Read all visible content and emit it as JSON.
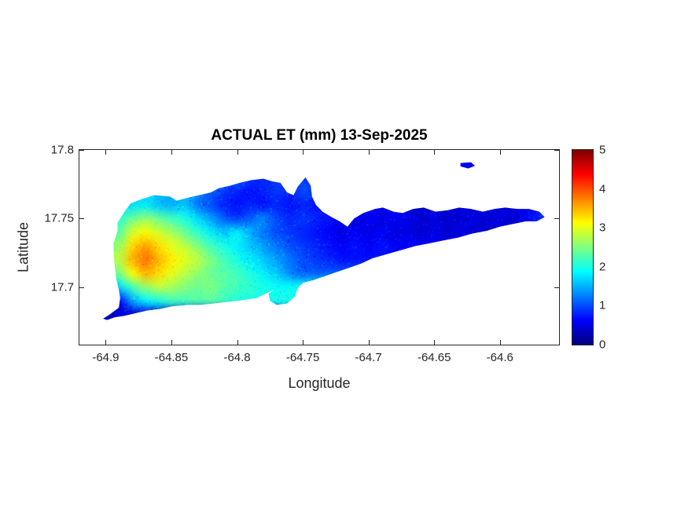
{
  "figure": {
    "background": "#ffffff",
    "frame_color": "#262626"
  },
  "chart_data": {
    "type": "heatmap",
    "title": "ACTUAL ET (mm) 13-Sep-2025",
    "xlabel": "Longitude",
    "ylabel": "Latitude",
    "xlim": [
      -64.92,
      -64.555
    ],
    "ylim": [
      17.658,
      17.8
    ],
    "xticks": [
      -64.9,
      -64.85,
      -64.8,
      -64.75,
      -64.7,
      -64.65,
      -64.6
    ],
    "xtick_labels": [
      "-64.9",
      "-64.85",
      "-64.8",
      "-64.75",
      "-64.7",
      "-64.65",
      "-64.6"
    ],
    "yticks": [
      17.7,
      17.75,
      17.8
    ],
    "ytick_labels": [
      "17.7",
      "17.75",
      "17.8"
    ],
    "grid_on": false,
    "colormap": "jet",
    "colorbar": {
      "min": 0,
      "max": 5,
      "ticks": [
        0,
        1,
        2,
        3,
        4,
        5
      ],
      "position": "right"
    },
    "grid": {
      "lon_start": -64.9,
      "lon_step": 0.01,
      "lat_start": 17.79,
      "lat_step": -0.01,
      "values": [
        [
          null,
          null,
          null,
          null,
          null,
          null,
          null,
          null,
          null,
          null,
          null,
          null,
          null,
          null,
          null,
          null,
          null,
          null,
          null,
          null,
          null,
          null,
          null,
          null,
          null,
          null,
          null,
          null,
          0.5,
          null,
          null,
          null,
          null,
          null,
          null
        ],
        [
          null,
          null,
          null,
          null,
          null,
          null,
          null,
          null,
          null,
          null,
          1.1,
          0.9,
          0.8,
          0.9,
          1.0,
          0.9,
          null,
          null,
          null,
          null,
          null,
          null,
          null,
          null,
          null,
          null,
          null,
          null,
          null,
          null,
          null,
          null,
          null,
          null,
          null
        ],
        [
          null,
          null,
          null,
          1.6,
          1.5,
          1.4,
          1.5,
          1.3,
          1.1,
          0.9,
          0.8,
          0.7,
          0.8,
          0.9,
          0.8,
          1.0,
          0.9,
          null,
          null,
          null,
          null,
          null,
          null,
          null,
          null,
          null,
          null,
          null,
          null,
          null,
          null,
          null,
          null,
          null,
          null
        ],
        [
          null,
          1.8,
          1.7,
          1.8,
          1.6,
          1.5,
          1.6,
          1.2,
          1.0,
          0.8,
          0.7,
          0.8,
          0.7,
          0.8,
          0.7,
          0.8,
          0.7,
          0.8,
          null,
          null,
          0.6,
          0.5,
          0.6,
          0.5,
          0.4,
          0.5,
          0.4,
          0.5,
          0.4,
          0.5,
          0.4,
          0.5,
          0.5,
          0.7,
          0.9
        ],
        [
          null,
          2.1,
          2.4,
          2.6,
          2.4,
          2.2,
          2.0,
          1.7,
          1.4,
          1.1,
          0.9,
          1.1,
          1.3,
          1.0,
          0.8,
          0.9,
          0.8,
          0.7,
          0.6,
          0.5,
          0.6,
          0.5,
          0.6,
          0.5,
          0.4,
          0.5,
          0.4,
          0.4,
          0.5,
          0.4,
          0.5,
          0.4,
          0.6,
          0.8,
          1.0
        ],
        [
          null,
          2.3,
          2.9,
          3.1,
          2.9,
          2.7,
          2.4,
          2.1,
          1.8,
          1.6,
          1.8,
          1.5,
          1.2,
          1.0,
          0.9,
          0.8,
          0.7,
          0.6,
          0.5,
          0.6,
          0.5,
          0.6,
          0.5,
          0.5,
          0.4,
          0.5,
          0.4,
          0.5,
          0.4,
          0.4,
          null,
          null,
          null,
          null,
          null
        ],
        [
          null,
          2.6,
          3.3,
          3.6,
          3.3,
          3.0,
          2.8,
          2.5,
          2.2,
          2.0,
          1.8,
          1.6,
          1.4,
          1.2,
          1.0,
          0.9,
          0.8,
          0.7,
          0.6,
          0.7,
          0.6,
          0.7,
          0.6,
          null,
          null,
          null,
          null,
          null,
          null,
          null,
          null,
          null,
          null,
          null,
          null
        ],
        [
          null,
          2.8,
          3.5,
          3.8,
          3.5,
          3.2,
          3.0,
          2.8,
          2.5,
          2.2,
          2.0,
          1.8,
          1.6,
          1.4,
          1.2,
          1.0,
          0.9,
          0.8,
          0.7,
          null,
          null,
          null,
          null,
          null,
          null,
          null,
          null,
          null,
          null,
          null,
          null,
          null,
          null,
          null,
          null
        ],
        [
          null,
          2.4,
          3.1,
          3.5,
          3.3,
          3.0,
          2.8,
          2.6,
          2.4,
          2.3,
          2.2,
          2.0,
          1.8,
          1.6,
          1.3,
          1.1,
          null,
          null,
          null,
          null,
          null,
          null,
          null,
          null,
          null,
          null,
          null,
          null,
          null,
          null,
          null,
          null,
          null,
          null,
          null
        ],
        [
          null,
          1.7,
          2.2,
          2.6,
          2.8,
          2.7,
          2.5,
          2.4,
          2.5,
          2.3,
          2.2,
          2.1,
          2.0,
          1.9,
          null,
          null,
          null,
          null,
          null,
          null,
          null,
          null,
          null,
          null,
          null,
          null,
          null,
          null,
          null,
          null,
          null,
          null,
          null,
          null,
          null
        ],
        [
          null,
          0.6,
          1.4,
          1.8,
          2.0,
          2.2,
          2.2,
          2.3,
          2.3,
          2.2,
          2.0,
          null,
          1.9,
          2.0,
          null,
          null,
          null,
          null,
          null,
          null,
          null,
          null,
          null,
          null,
          null,
          null,
          null,
          null,
          null,
          null,
          null,
          null,
          null,
          null,
          null
        ],
        [
          0.3,
          0.4,
          null,
          null,
          null,
          null,
          null,
          null,
          null,
          null,
          null,
          null,
          null,
          null,
          null,
          null,
          null,
          null,
          null,
          null,
          null,
          null,
          null,
          null,
          null,
          null,
          null,
          null,
          null,
          null,
          null,
          null,
          null,
          null,
          null
        ]
      ]
    },
    "island_outline": [
      [
        -64.902,
        17.677
      ],
      [
        -64.897,
        17.68
      ],
      [
        -64.89,
        17.685
      ],
      [
        -64.889,
        17.692
      ],
      [
        -64.89,
        17.698
      ],
      [
        -64.892,
        17.706
      ],
      [
        -64.893,
        17.715
      ],
      [
        -64.894,
        17.724
      ],
      [
        -64.894,
        17.732
      ],
      [
        -64.891,
        17.741
      ],
      [
        -64.891,
        17.747
      ],
      [
        -64.885,
        17.756
      ],
      [
        -64.881,
        17.761
      ],
      [
        -64.873,
        17.764
      ],
      [
        -64.863,
        17.767
      ],
      [
        -64.851,
        17.766
      ],
      [
        -64.846,
        17.763
      ],
      [
        -64.838,
        17.765
      ],
      [
        -64.829,
        17.767
      ],
      [
        -64.82,
        17.769
      ],
      [
        -64.814,
        17.772
      ],
      [
        -64.805,
        17.774
      ],
      [
        -64.798,
        17.776
      ],
      [
        -64.789,
        17.778
      ],
      [
        -64.78,
        17.779
      ],
      [
        -64.773,
        17.777
      ],
      [
        -64.767,
        17.776
      ],
      [
        -64.762,
        17.769
      ],
      [
        -64.757,
        17.767
      ],
      [
        -64.754,
        17.773
      ],
      [
        -64.748,
        17.78
      ],
      [
        -64.744,
        17.774
      ],
      [
        -64.743,
        17.766
      ],
      [
        -64.74,
        17.76
      ],
      [
        -64.735,
        17.755
      ],
      [
        -64.728,
        17.751
      ],
      [
        -64.722,
        17.748
      ],
      [
        -64.716,
        17.744
      ],
      [
        -64.711,
        17.75
      ],
      [
        -64.704,
        17.754
      ],
      [
        -64.695,
        17.757
      ],
      [
        -64.689,
        17.758
      ],
      [
        -64.681,
        17.755
      ],
      [
        -64.674,
        17.754
      ],
      [
        -64.666,
        17.757
      ],
      [
        -64.658,
        17.758
      ],
      [
        -64.649,
        17.755
      ],
      [
        -64.64,
        17.756
      ],
      [
        -64.631,
        17.758
      ],
      [
        -64.622,
        17.757
      ],
      [
        -64.613,
        17.755
      ],
      [
        -64.604,
        17.757
      ],
      [
        -64.596,
        17.758
      ],
      [
        -64.587,
        17.757
      ],
      [
        -64.578,
        17.757
      ],
      [
        -64.57,
        17.755
      ],
      [
        -64.566,
        17.751
      ],
      [
        -64.572,
        17.748
      ],
      [
        -64.58,
        17.748
      ],
      [
        -64.59,
        17.746
      ],
      [
        -64.6,
        17.744
      ],
      [
        -64.61,
        17.741
      ],
      [
        -64.621,
        17.739
      ],
      [
        -64.632,
        17.736
      ],
      [
        -64.643,
        17.734
      ],
      [
        -64.653,
        17.732
      ],
      [
        -64.664,
        17.73
      ],
      [
        -64.675,
        17.727
      ],
      [
        -64.686,
        17.724
      ],
      [
        -64.697,
        17.721
      ],
      [
        -64.706,
        17.717
      ],
      [
        -64.715,
        17.714
      ],
      [
        -64.724,
        17.711
      ],
      [
        -64.733,
        17.708
      ],
      [
        -64.742,
        17.705
      ],
      [
        -64.75,
        17.703
      ],
      [
        -64.754,
        17.699
      ],
      [
        -64.756,
        17.693
      ],
      [
        -64.762,
        17.688
      ],
      [
        -64.77,
        17.687
      ],
      [
        -64.775,
        17.69
      ],
      [
        -64.776,
        17.695
      ],
      [
        -64.772,
        17.698
      ],
      [
        -64.779,
        17.695
      ],
      [
        -64.785,
        17.692
      ],
      [
        -64.792,
        17.691
      ],
      [
        -64.8,
        17.69
      ],
      [
        -64.809,
        17.689
      ],
      [
        -64.818,
        17.688
      ],
      [
        -64.828,
        17.687
      ],
      [
        -64.838,
        17.687
      ],
      [
        -64.849,
        17.686
      ],
      [
        -64.859,
        17.684
      ],
      [
        -64.868,
        17.683
      ],
      [
        -64.877,
        17.681
      ],
      [
        -64.886,
        17.679
      ],
      [
        -64.893,
        17.678
      ],
      [
        -64.899,
        17.676
      ]
    ],
    "islets": [
      [
        [
          -64.63,
          17.7905
        ],
        [
          -64.622,
          17.791
        ],
        [
          -64.619,
          17.7885
        ],
        [
          -64.624,
          17.7865
        ],
        [
          -64.63,
          17.788
        ]
      ]
    ]
  }
}
